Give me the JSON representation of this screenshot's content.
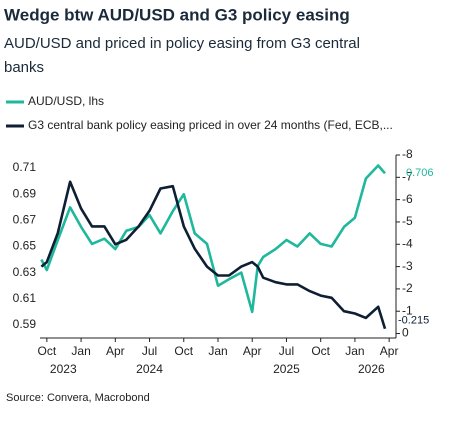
{
  "chart_data": {
    "type": "line",
    "title": "Wedge btw AUD/USD and G3 policy easing",
    "subtitle": [
      "AUD/USD and priced in policy easing from G3 central",
      "banks"
    ],
    "source": "Source: Convera, Macrobond",
    "x": [
      2023.71,
      2023.75,
      2023.83,
      2023.92,
      2024.0,
      2024.08,
      2024.17,
      2024.25,
      2024.33,
      2024.42,
      2024.5,
      2024.58,
      2024.67,
      2024.75,
      2024.83,
      2024.92,
      2025.0,
      2025.08,
      2025.17,
      2025.25,
      2025.29,
      2025.33,
      2025.42,
      2025.5,
      2025.58,
      2025.67,
      2025.75,
      2025.83,
      2025.92,
      2026.0,
      2026.08,
      2026.17,
      2026.22
    ],
    "series": [
      {
        "name": "AUD/USD, lhs",
        "color": "#1fb89c",
        "axis": "y",
        "values": [
          0.64,
          0.632,
          0.655,
          0.68,
          0.665,
          0.652,
          0.656,
          0.648,
          0.662,
          0.665,
          0.674,
          0.66,
          0.677,
          0.69,
          0.66,
          0.652,
          0.62,
          0.625,
          0.63,
          0.6,
          0.635,
          0.642,
          0.648,
          0.655,
          0.65,
          0.66,
          0.652,
          0.65,
          0.665,
          0.672,
          0.702,
          0.712,
          0.706
        ]
      },
      {
        "name": "G3 central bank policy easing priced in over 24 months (Fed, ECB,...",
        "color": "#0e1f33",
        "axis": "y2",
        "values": [
          -3.0,
          -3.2,
          -4.5,
          -6.8,
          -5.6,
          -4.8,
          -4.8,
          -4.0,
          -4.2,
          -4.8,
          -5.5,
          -6.5,
          -6.6,
          -4.8,
          -3.8,
          -3.0,
          -2.6,
          -2.6,
          -3.0,
          -3.2,
          -3.0,
          -2.5,
          -2.3,
          -2.2,
          -2.2,
          -1.9,
          -1.7,
          -1.6,
          -1.0,
          -0.9,
          -0.7,
          -1.2,
          -0.215
        ]
      }
    ],
    "annotations": [
      {
        "value": 0.706,
        "axis": "y",
        "color": "#1fb89c"
      },
      {
        "value": -0.215,
        "axis": "y2",
        "color": "#0e1f33"
      }
    ],
    "xlim": [
      2023.7,
      2026.3
    ],
    "xticks": [
      {
        "value": 2023.75,
        "label": "Oct"
      },
      {
        "value": 2024.0,
        "label": "Jan"
      },
      {
        "value": 2024.25,
        "label": "Apr"
      },
      {
        "value": 2024.5,
        "label": "Jul"
      },
      {
        "value": 2024.75,
        "label": "Oct"
      },
      {
        "value": 2025.0,
        "label": "Jan"
      },
      {
        "value": 2025.25,
        "label": "Apr"
      },
      {
        "value": 2025.5,
        "label": "Jul"
      },
      {
        "value": 2025.75,
        "label": "Oct"
      },
      {
        "value": 2026.0,
        "label": "Jan"
      },
      {
        "value": 2026.25,
        "label": "Apr"
      }
    ],
    "year_labels": [
      {
        "value": 2023.87,
        "label": "2023"
      },
      {
        "value": 2024.5,
        "label": "2024"
      },
      {
        "value": 2025.5,
        "label": "2025"
      },
      {
        "value": 2026.12,
        "label": "2026"
      }
    ],
    "ylim": [
      0.58,
      0.72
    ],
    "yticks": [
      0.59,
      0.61,
      0.63,
      0.65,
      0.67,
      0.69,
      0.71
    ],
    "y2lim": [
      0.2,
      -8
    ],
    "y2ticks": [
      0,
      -1,
      -2,
      -3,
      -4,
      -5,
      -6,
      -7,
      -8
    ],
    "grid": false
  }
}
